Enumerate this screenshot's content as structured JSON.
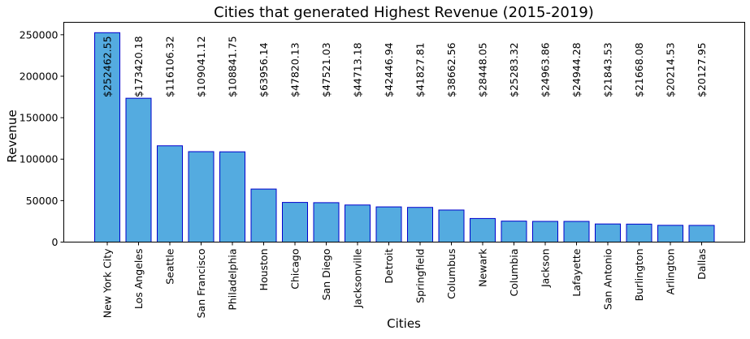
{
  "chart_data": {
    "type": "bar",
    "title": "Cities that generated Highest Revenue (2015-2019)",
    "xlabel": "Cities",
    "ylabel": "Revenue",
    "ylim": [
      0,
      265000
    ],
    "yticks": [
      0,
      50000,
      100000,
      150000,
      200000,
      250000
    ],
    "grid": false,
    "colors": {
      "bar_fill": "#54abe0",
      "bar_edge": "#0000cc"
    },
    "categories": [
      "New York City",
      "Los Angeles",
      "Seattle",
      "San Francisco",
      "Philadelphia",
      "Houston",
      "Chicago",
      "San Diego",
      "Jacksonville",
      "Detroit",
      "Springfield",
      "Columbus",
      "Newark",
      "Columbia",
      "Jackson",
      "Lafayette",
      "San Antonio",
      "Burlington",
      "Arlington",
      "Dallas"
    ],
    "values": [
      252462.55,
      173420.18,
      116106.32,
      109041.12,
      108841.75,
      63956.14,
      47820.13,
      47521.03,
      44713.18,
      42446.94,
      41827.81,
      38662.56,
      28448.05,
      25283.32,
      24963.86,
      24944.28,
      21843.53,
      21668.08,
      20214.53,
      20127.95
    ],
    "data_labels": [
      "$252462.55",
      "$173420.18",
      "$116106.32",
      "$109041.12",
      "$108841.75",
      "$63956.14",
      "$47820.13",
      "$47521.03",
      "$44713.18",
      "$42446.94",
      "$41827.81",
      "$38662.56",
      "$28448.05",
      "$25283.32",
      "$24963.86",
      "$24944.28",
      "$21843.53",
      "$21668.08",
      "$20214.53",
      "$20127.95"
    ]
  }
}
